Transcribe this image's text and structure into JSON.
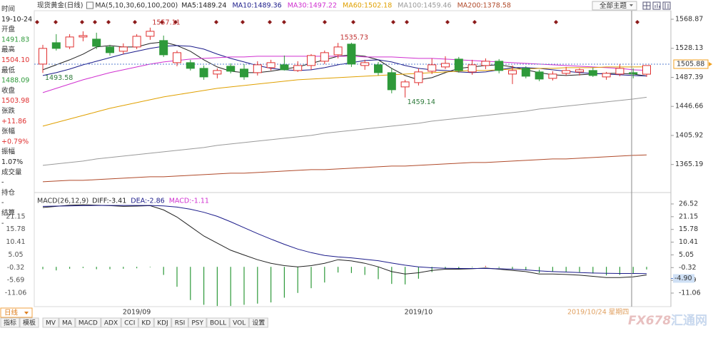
{
  "header": {
    "title": "现货黄金(日线)",
    "theme_button": "全部主题"
  },
  "info": [
    {
      "label": "时间",
      "value": "19-10-24",
      "color": "#222222"
    },
    {
      "label": "开盘",
      "value": "1491.83",
      "color": "#2e9a3a"
    },
    {
      "label": "最高",
      "value": "1504.10",
      "color": "#e03030"
    },
    {
      "label": "最低",
      "value": "1488.09",
      "color": "#2e9a3a"
    },
    {
      "label": "收盘",
      "value": "1503.98",
      "color": "#e03030"
    },
    {
      "label": "张跌",
      "value": "+11.86",
      "color": "#e03030"
    },
    {
      "label": "张幅",
      "value": "+0.79%",
      "color": "#e03030"
    },
    {
      "label": "振幅",
      "value": "1.07%",
      "color": "#222222"
    },
    {
      "label": "成交量",
      "value": "-",
      "color": "#222222"
    },
    {
      "label": "持仓",
      "value": "-",
      "color": "#222222"
    },
    {
      "label": "结算",
      "value": "-",
      "color": "#222222"
    }
  ],
  "toolbar": {
    "period": "日线",
    "buttons": [
      "指标",
      "模板",
      "MV",
      "MA",
      "MACD",
      "ADX",
      "CCI",
      "KD",
      "KDJ",
      "RSI",
      "PSY",
      "BOLL",
      "VOL",
      "设置"
    ]
  },
  "watermark": [
    "FX678",
    "汇通网"
  ],
  "chart_data": [
    {
      "type": "candlestick",
      "indicator_label": "MA(5,10,30,60,100,200)",
      "cursor_label": "2019/10/24 星期四",
      "categories": [
        null,
        null,
        null,
        null,
        null,
        null,
        null,
        "2019/09",
        null,
        null,
        null,
        null,
        null,
        null,
        null,
        null,
        null,
        null,
        null,
        null,
        null,
        null,
        null,
        null,
        null,
        null,
        null,
        null,
        "2019/10",
        null,
        null,
        null,
        null,
        null,
        null,
        null,
        null,
        null,
        null,
        null,
        null,
        null,
        null,
        null,
        null,
        null
      ],
      "candles": [
        [
          1506,
          1533,
          1493.58,
          1528
        ],
        [
          1536,
          1548,
          1525,
          1528
        ],
        [
          1530,
          1548,
          1527,
          1544
        ],
        [
          1544,
          1552,
          1538,
          1546
        ],
        [
          1541,
          1550,
          1527,
          1531
        ],
        [
          1530,
          1533,
          1518,
          1522
        ],
        [
          1524,
          1535,
          1520,
          1530
        ],
        [
          1530,
          1548,
          1527,
          1545
        ],
        [
          1545,
          1557.11,
          1540,
          1552
        ],
        [
          1539,
          1546,
          1516,
          1519
        ],
        [
          1508,
          1525,
          1503,
          1522
        ],
        [
          1508,
          1512,
          1497,
          1500
        ],
        [
          1500,
          1504,
          1484,
          1488
        ],
        [
          1492,
          1500,
          1486,
          1497
        ],
        [
          1503,
          1507,
          1493,
          1496
        ],
        [
          1499,
          1506,
          1484,
          1488
        ],
        [
          1494,
          1510,
          1490,
          1505
        ],
        [
          1501,
          1512,
          1497,
          1508
        ],
        [
          1505,
          1518,
          1497,
          1498
        ],
        [
          1497,
          1510,
          1495,
          1504
        ],
        [
          1504,
          1520,
          1498,
          1518
        ],
        [
          1510,
          1525,
          1506,
          1522
        ],
        [
          1519,
          1535.73,
          1514,
          1530
        ],
        [
          1534,
          1536,
          1502,
          1506
        ],
        [
          1504,
          1512,
          1498,
          1508
        ],
        [
          1505,
          1509,
          1490,
          1494
        ],
        [
          1494,
          1500,
          1465,
          1470
        ],
        [
          1474,
          1484,
          1459.14,
          1481
        ],
        [
          1480,
          1500,
          1476,
          1495
        ],
        [
          1496,
          1514,
          1492,
          1505
        ],
        [
          1502,
          1517,
          1499,
          1507
        ],
        [
          1513,
          1516,
          1494,
          1497
        ],
        [
          1495,
          1512,
          1491,
          1505
        ],
        [
          1504,
          1514,
          1499,
          1510
        ],
        [
          1510,
          1513,
          1493,
          1497
        ],
        [
          1492,
          1504,
          1478,
          1497
        ],
        [
          1500,
          1503,
          1486,
          1489
        ],
        [
          1495,
          1498,
          1482,
          1485
        ],
        [
          1486,
          1496,
          1483,
          1492
        ],
        [
          1493,
          1502,
          1490,
          1497
        ],
        [
          1495,
          1500,
          1490,
          1498
        ],
        [
          1497,
          1501,
          1488,
          1490
        ],
        [
          1488,
          1495,
          1484,
          1493
        ],
        [
          1492,
          1506,
          1489,
          1500
        ],
        [
          1494,
          1500,
          1486,
          1492.12
        ],
        [
          1491.83,
          1504.1,
          1488.09,
          1503.98
        ]
      ],
      "up_color": "#e03030",
      "down_color": "#2e9a3a",
      "series": [
        {
          "name": "MA5:1489.24",
          "color": "#222222",
          "values": [
            1498,
            1505,
            1512,
            1520,
            1530,
            1532,
            1530,
            1530,
            1535,
            1537,
            1532,
            1524,
            1512,
            1502,
            1496,
            1494,
            1494,
            1496,
            1499,
            1502,
            1507,
            1512,
            1517,
            1519,
            1517,
            1512,
            1500,
            1490,
            1484,
            1487,
            1494,
            1500,
            1502,
            1504,
            1505,
            1502,
            1498,
            1494,
            1491,
            1490,
            1491,
            1492,
            1493,
            1493,
            1492,
            1489.24
          ]
        },
        {
          "name": "MA10:1489.36",
          "color": "#1b1b8a",
          "values": [
            1490,
            1494,
            1499,
            1505,
            1510,
            1515,
            1520,
            1524,
            1528,
            1531,
            1532,
            1531,
            1527,
            1520,
            1514,
            1509,
            1504,
            1500,
            1498,
            1497,
            1498,
            1501,
            1505,
            1508,
            1511,
            1512,
            1509,
            1504,
            1500,
            1498,
            1497,
            1495,
            1494,
            1495,
            1498,
            1501,
            1501,
            1500,
            1498,
            1496,
            1494,
            1493,
            1492,
            1491,
            1490,
            1489.36
          ]
        },
        {
          "name": "MA30:1497.22",
          "color": "#d030d0",
          "values": [
            1466,
            1472,
            1478,
            1484,
            1489,
            1494,
            1498,
            1502,
            1506,
            1509,
            1511,
            1513,
            1514,
            1515,
            1516,
            1516,
            1517,
            1517,
            1517,
            1517,
            1517,
            1517,
            1517,
            1517,
            1516,
            1516,
            1516,
            1515,
            1514,
            1514,
            1513,
            1512,
            1511,
            1510,
            1509,
            1508,
            1507,
            1506,
            1505,
            1504,
            1503,
            1502,
            1501,
            1500,
            1498,
            1497.22
          ]
        },
        {
          "name": "MA60:1502.18",
          "color": "#e0a000",
          "values": [
            1419,
            1424,
            1429,
            1434,
            1439,
            1444,
            1448,
            1452,
            1456,
            1460,
            1463,
            1466,
            1469,
            1472,
            1474,
            1476,
            1478,
            1480,
            1482,
            1484,
            1485,
            1486,
            1487,
            1488,
            1489,
            1490,
            1491,
            1492,
            1493,
            1494,
            1495,
            1496,
            1497,
            1497,
            1498,
            1499,
            1499,
            1500,
            1500,
            1501,
            1501,
            1501,
            1502,
            1502,
            1502,
            1502.18
          ]
        },
        {
          "name": "MA100:1459.46",
          "color": "#9a9a9a",
          "values": [
            1364,
            1366,
            1368,
            1370,
            1373,
            1375,
            1377,
            1379,
            1381,
            1383,
            1385,
            1387,
            1389,
            1392,
            1394,
            1396,
            1398,
            1400,
            1402,
            1404,
            1406,
            1409,
            1411,
            1413,
            1415,
            1417,
            1419,
            1421,
            1423,
            1426,
            1428,
            1430,
            1432,
            1434,
            1436,
            1438,
            1440,
            1443,
            1445,
            1447,
            1449,
            1451,
            1453,
            1455,
            1457,
            1459.46
          ]
        },
        {
          "name": "MA200:1378.58",
          "color": "#b04a2a",
          "values": [
            1341,
            1342,
            1343,
            1343,
            1344,
            1345,
            1346,
            1347,
            1348,
            1348,
            1349,
            1350,
            1351,
            1352,
            1353,
            1353,
            1354,
            1355,
            1356,
            1357,
            1358,
            1358,
            1359,
            1360,
            1361,
            1362,
            1363,
            1363,
            1364,
            1365,
            1366,
            1367,
            1368,
            1368,
            1369,
            1370,
            1371,
            1372,
            1373,
            1373,
            1374,
            1375,
            1376,
            1377,
            1378,
            1378.58
          ]
        }
      ],
      "ylim": [
        1327.87,
        1580.87
      ],
      "yticks": [
        1568.87,
        1528.13,
        1487.39,
        1446.66,
        1405.92,
        1365.19
      ],
      "last_price": 1505.88
    },
    {
      "type": "macd",
      "title": "MACD(26,12,9)",
      "series": [
        {
          "name": "DIFF:-3.41",
          "color": "#222222",
          "values": [
            25,
            25.5,
            26,
            26.2,
            26,
            25.8,
            25.5,
            25.6,
            25.8,
            24,
            21,
            17,
            13,
            10,
            7,
            5,
            3,
            1.5,
            0.5,
            0,
            0.5,
            1.5,
            3,
            2.5,
            1.5,
            0,
            -2,
            -3,
            -2.5,
            -1.5,
            -1,
            -1,
            -0.8,
            -0.5,
            -1,
            -1.5,
            -2,
            -3,
            -3,
            -3.2,
            -3.5,
            -4,
            -4.5,
            -4.5,
            -4.2,
            -3.41
          ]
        },
        {
          "name": "DEA:-2.86",
          "color": "#1b1b8a",
          "values": [
            25.5,
            25.6,
            25.7,
            25.8,
            25.9,
            25.9,
            25.9,
            25.9,
            25.9,
            25.7,
            25.2,
            24.3,
            23,
            21.3,
            19,
            16.5,
            14,
            11.7,
            9.5,
            7.5,
            6,
            4.8,
            4.2,
            3.8,
            3.2,
            2.6,
            1.6,
            0.7,
            0,
            -0.4,
            -0.6,
            -0.7,
            -0.7,
            -0.7,
            -0.8,
            -1,
            -1.3,
            -1.7,
            -2,
            -2.2,
            -2.4,
            -2.6,
            -2.7,
            -2.8,
            -2.8,
            -2.86
          ]
        }
      ],
      "bars": {
        "name": "MACD:-1.11",
        "color": "#d030d0",
        "up_color": "#e03030",
        "down_color": "#2e9a3a",
        "values": [
          -1,
          -1.5,
          -0.8,
          -0.5,
          -1,
          -1,
          -0.8,
          -0.6,
          -0.2,
          -3.4,
          -8.4,
          -14,
          -16,
          -16.5,
          -16.5,
          -16,
          -15.5,
          -15,
          -13,
          -11,
          -9,
          -6.6,
          -2.4,
          -2.6,
          -3.4,
          -5.2,
          -7.2,
          -7.4,
          -5,
          -2.2,
          -0.8,
          -0.6,
          -0.2,
          0.4,
          -0.4,
          -1,
          -1.4,
          -2.6,
          -2,
          -2,
          -2.2,
          -2.8,
          -3.6,
          -3.4,
          -2.8,
          -1.11
        ]
      },
      "ylim": [
        -16.77,
        28.32
      ],
      "yticks": [
        26.52,
        21.15,
        15.78,
        10.41,
        5.05,
        -0.32,
        -5.69,
        -11.06
      ],
      "cursor_value": {
        "value": -4.9,
        "label": "-4.90"
      }
    }
  ]
}
